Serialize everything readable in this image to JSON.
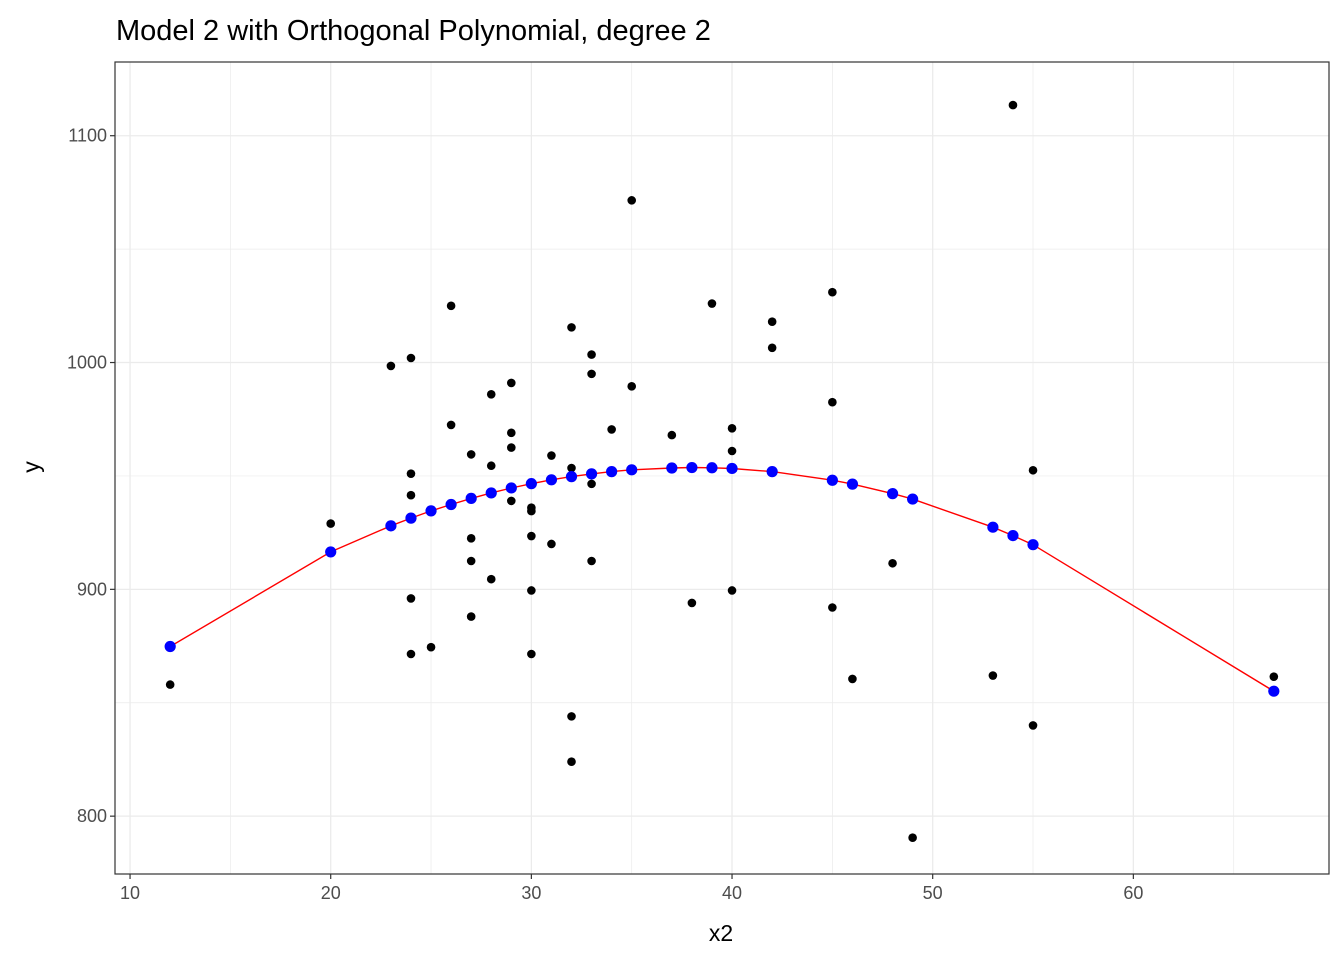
{
  "chart_data": {
    "type": "scatter",
    "title": "Model 2 with Orthogonal Polynomial, degree 2",
    "xlabel": "x2",
    "ylabel": "y",
    "xlim": [
      9.25,
      69.75
    ],
    "ylim": [
      774.5,
      1132.5
    ],
    "xticks": [
      10,
      20,
      30,
      40,
      50,
      60
    ],
    "yticks": [
      800,
      900,
      1000,
      1100
    ],
    "grid": true,
    "legend": "none",
    "colors": {
      "observed": "#000000",
      "fitted_points": "#0000ff",
      "fitted_line": "#ff0000",
      "grid": "#ebebeb",
      "panel_border": "#333333"
    },
    "series": [
      {
        "kind": "observed",
        "x": [
          12,
          20,
          23,
          24,
          24,
          24,
          24,
          24,
          25,
          26,
          26,
          27,
          27,
          27,
          27,
          28,
          28,
          28,
          29,
          29,
          29,
          29,
          30,
          30,
          30,
          30,
          30,
          31,
          31,
          32,
          32,
          32,
          32,
          33,
          33,
          33,
          33,
          34,
          35,
          35,
          37,
          38,
          39,
          40,
          40,
          40,
          42,
          42,
          45,
          45,
          45,
          46,
          48,
          49,
          53,
          54,
          55,
          55,
          67
        ],
        "y": [
          858,
          929,
          998.5,
          1002,
          951,
          941.5,
          896,
          871.5,
          874.5,
          1025,
          972.5,
          959.5,
          922.5,
          912.5,
          888,
          986,
          954.5,
          904.5,
          991,
          969,
          962.5,
          939,
          936,
          934.5,
          923.5,
          899.5,
          871.5,
          959,
          920,
          1015.5,
          953.5,
          844,
          824,
          1003.5,
          995,
          946.5,
          912.5,
          970.5,
          1071.5,
          989.5,
          968,
          894,
          1026,
          971,
          961,
          899.5,
          1018,
          1006.5,
          1031,
          982.5,
          892,
          860.5,
          911.5,
          790.5,
          862,
          1113.5,
          952.5,
          840,
          861.5
        ]
      },
      {
        "kind": "fitted",
        "x": [
          12,
          20,
          23,
          24,
          25,
          26,
          27,
          28,
          29,
          30,
          31,
          32,
          33,
          34,
          35,
          37,
          38,
          39,
          40,
          42,
          45,
          46,
          48,
          49,
          53,
          54,
          55,
          67
        ],
        "y": [
          874.8,
          916.5,
          928.0,
          931.4,
          934.6,
          937.4,
          940.1,
          942.5,
          944.7,
          946.6,
          948.3,
          949.7,
          950.9,
          951.9,
          952.7,
          953.5,
          953.7,
          953.6,
          953.3,
          951.9,
          948.1,
          946.4,
          942.2,
          939.8,
          927.4,
          923.7,
          919.7,
          855.1
        ]
      }
    ]
  }
}
